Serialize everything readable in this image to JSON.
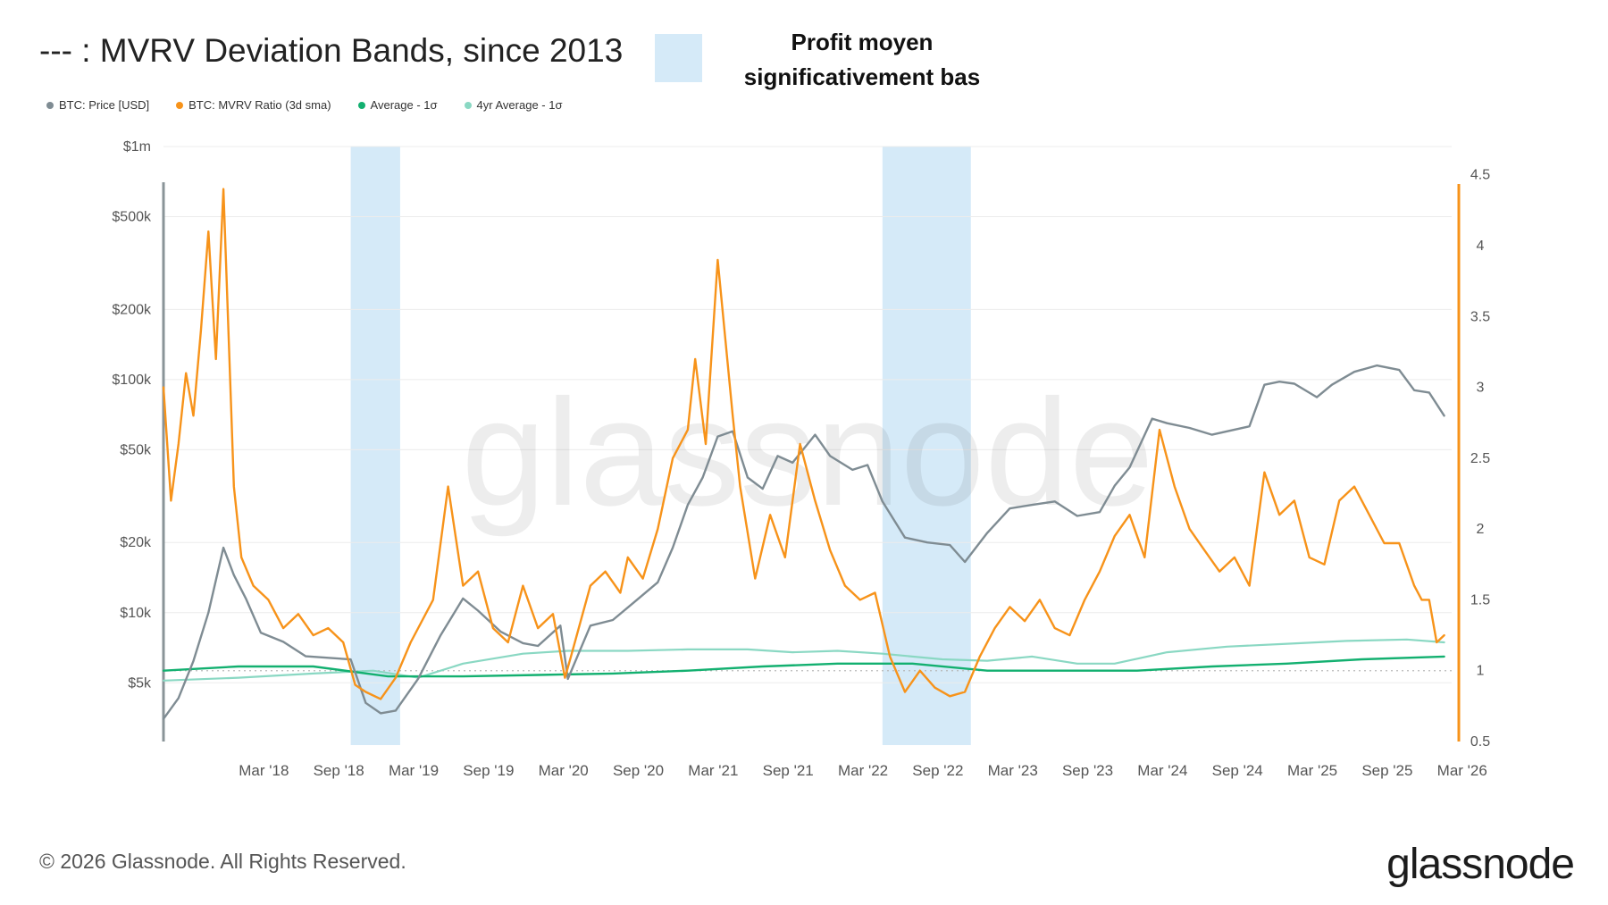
{
  "title": "--- : MVRV Deviation Bands, since 2013",
  "annotation": {
    "line1": "Profit moyen",
    "line2": "significativement bas",
    "color": "#d5eaf8"
  },
  "watermark": "glassnode",
  "footer": "© 2026 Glassnode. All Rights Reserved.",
  "brand": "glassnode",
  "colors": {
    "price": "#7f8c93",
    "mvrv": "#f7931a",
    "average": "#13b070",
    "avg4y": "#8ad8c3",
    "band": "#d5eaf8",
    "grid": "#ececec"
  },
  "chart_data": {
    "type": "line",
    "legend": [
      {
        "name": "BTC: Price [USD]",
        "color": "#7f8c93"
      },
      {
        "name": "BTC: MVRV Ratio (3d sma)",
        "color": "#f7931a"
      },
      {
        "name": "Average - 1σ",
        "color": "#13b070"
      },
      {
        "name": "4yr Average - 1σ",
        "color": "#8ad8c3"
      }
    ],
    "x_ticks": [
      "Mar '18",
      "Sep '18",
      "Mar '19",
      "Sep '19",
      "Mar '20",
      "Sep '20",
      "Mar '21",
      "Sep '21",
      "Mar '22",
      "Sep '22",
      "Mar '23",
      "Sep '23",
      "Mar '24",
      "Sep '24",
      "Mar '25",
      "Sep '25",
      "Mar '26"
    ],
    "x_range": [
      2017.5,
      2026.1
    ],
    "y_left": {
      "scale": "log",
      "range": [
        2800,
        1000000
      ],
      "ticks": [
        1000000,
        500000,
        200000,
        100000,
        50000,
        20000,
        10000,
        5000
      ],
      "tick_labels": [
        "$1m",
        "$500k",
        "$200k",
        "$100k",
        "$50k",
        "$20k",
        "$10k",
        "$5k"
      ]
    },
    "y_right": {
      "scale": "linear",
      "range": [
        0.5,
        4.7
      ],
      "ticks": [
        4.5,
        4,
        3.5,
        3,
        2.5,
        2,
        1.5,
        1,
        0.5
      ],
      "tick_labels": [
        "4.5",
        "4",
        "3.5",
        "3",
        "2.5",
        "2",
        "1.5",
        "1",
        "0.5"
      ]
    },
    "shaded_bands": [
      [
        2018.75,
        2019.08
      ],
      [
        2022.3,
        2022.89
      ]
    ],
    "series": [
      {
        "name": "BTC: Price [USD]",
        "axis": "left",
        "x": [
          2017.5,
          2017.6,
          2017.7,
          2017.8,
          2017.9,
          2017.97,
          2018.05,
          2018.15,
          2018.3,
          2018.45,
          2018.6,
          2018.75,
          2018.85,
          2018.95,
          2019.05,
          2019.2,
          2019.35,
          2019.5,
          2019.6,
          2019.75,
          2019.9,
          2020.0,
          2020.15,
          2020.2,
          2020.35,
          2020.5,
          2020.65,
          2020.8,
          2020.9,
          2021.0,
          2021.1,
          2021.2,
          2021.3,
          2021.4,
          2021.5,
          2021.6,
          2021.7,
          2021.85,
          2021.95,
          2022.1,
          2022.2,
          2022.3,
          2022.45,
          2022.6,
          2022.75,
          2022.85,
          2023.0,
          2023.15,
          2023.3,
          2023.45,
          2023.6,
          2023.75,
          2023.85,
          2023.95,
          2024.1,
          2024.2,
          2024.35,
          2024.5,
          2024.6,
          2024.75,
          2024.85,
          2024.95,
          2025.05,
          2025.2,
          2025.3,
          2025.45,
          2025.6,
          2025.75,
          2025.85,
          2025.95,
          2026.05
        ],
        "values": [
          3500,
          4300,
          6200,
          10000,
          19000,
          14500,
          11500,
          8200,
          7500,
          6500,
          6400,
          6300,
          4100,
          3700,
          3800,
          5200,
          8000,
          11500,
          10200,
          8300,
          7400,
          7200,
          8800,
          5200,
          8800,
          9300,
          11200,
          13500,
          19000,
          29000,
          38000,
          57000,
          60000,
          38000,
          34000,
          47000,
          44000,
          58000,
          47000,
          41000,
          43000,
          30000,
          21000,
          20000,
          19500,
          16500,
          22000,
          28000,
          29000,
          30000,
          26000,
          27000,
          35000,
          42000,
          68000,
          65000,
          62000,
          58000,
          60000,
          63000,
          95000,
          98000,
          96000,
          84000,
          95000,
          108000,
          115000,
          110000,
          90000,
          88000,
          70000
        ]
      },
      {
        "name": "BTC: MVRV Ratio (3d sma)",
        "axis": "right",
        "x": [
          2017.5,
          2017.55,
          2017.6,
          2017.65,
          2017.7,
          2017.75,
          2017.8,
          2017.85,
          2017.9,
          2017.95,
          2017.97,
          2018.02,
          2018.1,
          2018.2,
          2018.3,
          2018.4,
          2018.5,
          2018.6,
          2018.7,
          2018.78,
          2018.85,
          2018.95,
          2019.05,
          2019.15,
          2019.3,
          2019.4,
          2019.5,
          2019.6,
          2019.7,
          2019.8,
          2019.9,
          2020.0,
          2020.1,
          2020.18,
          2020.22,
          2020.35,
          2020.45,
          2020.55,
          2020.6,
          2020.7,
          2020.8,
          2020.9,
          2021.0,
          2021.05,
          2021.12,
          2021.2,
          2021.3,
          2021.35,
          2021.45,
          2021.55,
          2021.65,
          2021.75,
          2021.85,
          2021.95,
          2022.05,
          2022.15,
          2022.25,
          2022.35,
          2022.45,
          2022.55,
          2022.65,
          2022.75,
          2022.85,
          2022.95,
          2023.05,
          2023.15,
          2023.25,
          2023.35,
          2023.45,
          2023.55,
          2023.65,
          2023.75,
          2023.85,
          2023.95,
          2024.05,
          2024.15,
          2024.25,
          2024.35,
          2024.45,
          2024.55,
          2024.65,
          2024.75,
          2024.85,
          2024.95,
          2025.05,
          2025.15,
          2025.25,
          2025.35,
          2025.45,
          2025.55,
          2025.65,
          2025.75,
          2025.85,
          2025.9,
          2025.95,
          2026.0,
          2026.05
        ],
        "values": [
          3.0,
          2.2,
          2.6,
          3.1,
          2.8,
          3.4,
          4.1,
          3.2,
          4.4,
          2.9,
          2.3,
          1.8,
          1.6,
          1.5,
          1.3,
          1.4,
          1.25,
          1.3,
          1.2,
          0.9,
          0.85,
          0.8,
          0.95,
          1.2,
          1.5,
          2.3,
          1.6,
          1.7,
          1.3,
          1.2,
          1.6,
          1.3,
          1.4,
          0.95,
          1.1,
          1.6,
          1.7,
          1.55,
          1.8,
          1.65,
          2.0,
          2.5,
          2.7,
          3.2,
          2.6,
          3.9,
          2.8,
          2.3,
          1.65,
          2.1,
          1.8,
          2.6,
          2.2,
          1.85,
          1.6,
          1.5,
          1.55,
          1.1,
          0.85,
          1.0,
          0.88,
          0.82,
          0.85,
          1.1,
          1.3,
          1.45,
          1.35,
          1.5,
          1.3,
          1.25,
          1.5,
          1.7,
          1.95,
          2.1,
          1.8,
          2.7,
          2.3,
          2.0,
          1.85,
          1.7,
          1.8,
          1.6,
          2.4,
          2.1,
          2.2,
          1.8,
          1.75,
          2.2,
          2.3,
          2.1,
          1.9,
          1.9,
          1.6,
          1.5,
          1.5,
          1.2,
          1.25
        ]
      },
      {
        "name": "Average - 1σ",
        "axis": "right",
        "x": [
          2017.5,
          2018.0,
          2018.5,
          2019.0,
          2019.5,
          2020.0,
          2020.5,
          2021.0,
          2021.5,
          2022.0,
          2022.5,
          2023.0,
          2023.5,
          2024.0,
          2024.5,
          2025.0,
          2025.5,
          2026.05
        ],
        "values": [
          1.0,
          1.03,
          1.03,
          0.96,
          0.96,
          0.97,
          0.98,
          1.0,
          1.03,
          1.05,
          1.05,
          1.0,
          1.0,
          1.0,
          1.03,
          1.05,
          1.08,
          1.1
        ]
      },
      {
        "name": "4yr Average - 1σ",
        "axis": "right",
        "x": [
          2017.5,
          2018.0,
          2018.5,
          2018.9,
          2019.2,
          2019.5,
          2019.9,
          2020.2,
          2020.6,
          2021.0,
          2021.4,
          2021.7,
          2022.0,
          2022.3,
          2022.7,
          2023.0,
          2023.3,
          2023.6,
          2023.85,
          2024.2,
          2024.6,
          2025.0,
          2025.4,
          2025.8,
          2026.05
        ],
        "values": [
          0.93,
          0.95,
          0.98,
          1.0,
          0.95,
          1.05,
          1.12,
          1.14,
          1.14,
          1.15,
          1.15,
          1.13,
          1.14,
          1.12,
          1.08,
          1.07,
          1.1,
          1.05,
          1.05,
          1.13,
          1.17,
          1.19,
          1.21,
          1.22,
          1.2
        ]
      }
    ]
  }
}
